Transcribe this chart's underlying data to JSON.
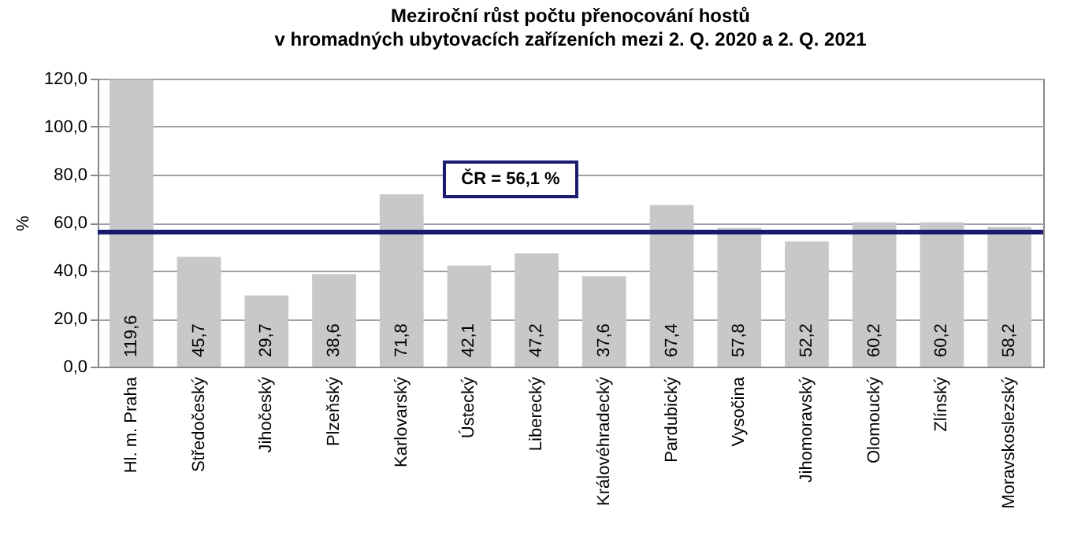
{
  "chart_data": {
    "type": "bar",
    "title": "Meziroční růst počtu přenocování hostů\nv hromadných ubytovacích zařízeních mezi 2. Q. 2020 a 2. Q. 2021",
    "ylabel": "%",
    "categories": [
      "Hl. m. Praha",
      "Středočeský",
      "Jihočeský",
      "Plzeňský",
      "Karlovarský",
      "Ústecký",
      "Liberecký",
      "Královéhradecký",
      "Pardubický",
      "Vysočina",
      "Jihomoravský",
      "Olomoucký",
      "Zlínský",
      "Moravskoslezský"
    ],
    "values": [
      119.6,
      45.7,
      29.7,
      38.6,
      71.8,
      42.1,
      47.2,
      37.6,
      67.4,
      57.8,
      52.2,
      60.2,
      60.2,
      58.2
    ],
    "value_labels": [
      "119,6",
      "45,7",
      "29,7",
      "38,6",
      "71,8",
      "42,1",
      "47,2",
      "37,6",
      "67,4",
      "57,8",
      "52,2",
      "60,2",
      "60,2",
      "58,2"
    ],
    "color": "#c8c8c8",
    "ylim": [
      0,
      120
    ],
    "yticks": [
      {
        "value": 0,
        "label": "0,0"
      },
      {
        "value": 20,
        "label": "20,0"
      },
      {
        "value": 40,
        "label": "40,0"
      },
      {
        "value": 60,
        "label": "60,0"
      },
      {
        "value": 80,
        "label": "80,0"
      },
      {
        "value": 100,
        "label": "100,0"
      },
      {
        "value": 120,
        "label": "120,0"
      }
    ],
    "grid": "y",
    "ref_lines": [
      {
        "axis": "y",
        "value": 56.1,
        "label": "ČR = 56,1 %",
        "color": "#1a1a6e"
      }
    ]
  }
}
